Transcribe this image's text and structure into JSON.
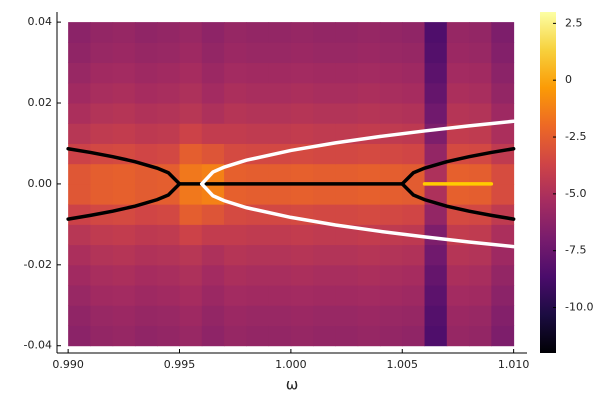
{
  "chart_data": {
    "type": "heatmap",
    "xlabel": "ω",
    "xlim": [
      0.9895,
      1.0106
    ],
    "ylim": [
      -0.0418,
      0.0425
    ],
    "xticks": [
      {
        "value": 0.99,
        "label": "0.990"
      },
      {
        "value": 0.995,
        "label": "0.995"
      },
      {
        "value": 1.0,
        "label": "1.000"
      },
      {
        "value": 1.005,
        "label": "1.005"
      },
      {
        "value": 1.01,
        "label": "1.010"
      }
    ],
    "yticks": [
      -0.04,
      -0.02,
      {
        "value": 0,
        "label": "0.00"
      },
      0.02,
      0.04
    ],
    "x_edges": [
      0.99,
      0.991,
      0.992,
      0.993,
      0.994,
      0.995,
      0.996,
      0.997,
      0.998,
      0.999,
      1.0,
      1.001,
      1.002,
      1.003,
      1.004,
      1.005,
      1.006,
      1.007,
      1.008,
      1.009,
      1.01
    ],
    "y_edges": [
      -0.04,
      -0.035,
      -0.03,
      -0.025,
      -0.02,
      -0.015,
      -0.01,
      -0.005,
      0,
      0.005,
      0.01,
      0.015,
      0.02,
      0.025,
      0.03,
      0.035,
      0.04
    ],
    "x_cells_note_free": true,
    "z": [
      [
        -6.3,
        -6,
        -5.9,
        -6.1,
        -6,
        -5.8,
        -6.2,
        -5.9,
        -6,
        -6,
        -5.9,
        -6,
        -6,
        -5.9,
        -6,
        -6.1,
        -8.5,
        -5.9,
        -6,
        -6.8
      ],
      [
        -6.1,
        -5.8,
        -5.7,
        -5.9,
        -5.8,
        -5.6,
        -6,
        -5.7,
        -5.8,
        -5.8,
        -5.7,
        -5.8,
        -5.8,
        -5.7,
        -5.8,
        -5.9,
        -8.3,
        -5.7,
        -5.8,
        -6.6
      ],
      [
        -5.8,
        -5.5,
        -5.4,
        -5.6,
        -5.5,
        -5.3,
        -5.7,
        -5.4,
        -5.5,
        -5.5,
        -5.4,
        -5.5,
        -5.5,
        -5.4,
        -5.5,
        -5.6,
        -8,
        -5.4,
        -5.5,
        -6.3
      ],
      [
        -5.5,
        -5.2,
        -5.1,
        -5.3,
        -5.2,
        -5,
        -5.4,
        -5.1,
        -5.2,
        -5.2,
        -5.1,
        -5.2,
        -5.2,
        -5.1,
        -5.2,
        -5.3,
        -7.7,
        -5.1,
        -5.2,
        -6
      ],
      [
        -5.1,
        -4.8,
        -4.7,
        -4.9,
        -4.8,
        -4.6,
        -5,
        -4.7,
        -4.8,
        -4.8,
        -4.7,
        -4.8,
        -4.8,
        -4.7,
        -4.8,
        -4.9,
        -7.3,
        -4.7,
        -4.8,
        -5.6
      ],
      [
        -4.6,
        -4.3,
        -4.2,
        -4.4,
        -4.3,
        -3.8,
        -4.2,
        -4.2,
        -4.3,
        -4.3,
        -4.2,
        -4.3,
        -4.3,
        -4.2,
        -4.3,
        -4.4,
        -6.8,
        -4.2,
        -4.3,
        -5.1
      ],
      [
        -3.8,
        -3.5,
        -3.4,
        -3.6,
        -3.5,
        -2.5,
        -2.9,
        -3.4,
        -3.5,
        -3.5,
        -3.4,
        -3.5,
        -3.5,
        -3.4,
        -3.5,
        -3.6,
        -6,
        -3.4,
        -3.5,
        -4.3
      ],
      [
        -2.8,
        -2.5,
        -2.4,
        -2.6,
        -2.5,
        -1.5,
        -1.2,
        -2.4,
        -2.5,
        -2.5,
        -2.4,
        -2.5,
        -2.5,
        -2.4,
        -2.5,
        -2.6,
        -5,
        -2.4,
        -2.5,
        -3.3
      ],
      [
        -2.8,
        -2.5,
        -2.4,
        -2.6,
        -2.5,
        -1.5,
        -1.2,
        -2.4,
        -2.5,
        -2.5,
        -2.4,
        -2.5,
        -2.5,
        -2.4,
        -2.5,
        -2.6,
        -5,
        -2.4,
        -2.5,
        -3.3
      ],
      [
        -3.8,
        -3.5,
        -3.4,
        -3.6,
        -3.5,
        -2.5,
        -2.9,
        -3.4,
        -3.5,
        -3.5,
        -3.4,
        -3.5,
        -3.5,
        -3.4,
        -3.5,
        -3.6,
        -6,
        -3.4,
        -3.5,
        -4.3
      ],
      [
        -4.6,
        -4.3,
        -4.2,
        -4.4,
        -4.3,
        -3.8,
        -4.2,
        -4.2,
        -4.3,
        -4.3,
        -4.2,
        -4.3,
        -4.3,
        -4.2,
        -4.3,
        -4.4,
        -6.8,
        -4.2,
        -4.3,
        -5.1
      ],
      [
        -5.1,
        -4.8,
        -4.7,
        -4.9,
        -4.8,
        -4.6,
        -5,
        -4.7,
        -4.8,
        -4.8,
        -4.7,
        -4.8,
        -4.8,
        -4.7,
        -4.8,
        -4.9,
        -7.3,
        -4.7,
        -4.8,
        -5.6
      ],
      [
        -5.5,
        -5.2,
        -5.1,
        -5.3,
        -5.2,
        -5,
        -5.4,
        -5.1,
        -5.2,
        -5.2,
        -5.1,
        -5.2,
        -5.2,
        -5.1,
        -5.2,
        -5.3,
        -7.7,
        -5.1,
        -5.2,
        -6
      ],
      [
        -5.8,
        -5.5,
        -5.4,
        -5.6,
        -5.5,
        -5.3,
        -5.7,
        -5.4,
        -5.5,
        -5.5,
        -5.4,
        -5.5,
        -5.5,
        -5.4,
        -5.5,
        -5.6,
        -8,
        -5.4,
        -5.5,
        -6.3
      ],
      [
        -6.1,
        -5.8,
        -5.7,
        -5.9,
        -5.8,
        -5.6,
        -6,
        -5.7,
        -5.8,
        -5.8,
        -5.7,
        -5.8,
        -5.8,
        -5.7,
        -5.8,
        -5.9,
        -8.3,
        -5.7,
        -5.8,
        -6.6
      ],
      [
        -6.3,
        -6,
        -5.9,
        -6.1,
        -6,
        -5.8,
        -6.2,
        -5.9,
        -6,
        -6,
        -5.9,
        -6,
        -6,
        -5.9,
        -6,
        -6.1,
        -8.5,
        -5.9,
        -6,
        -6.8
      ]
    ],
    "clim": [
      -12,
      3
    ],
    "colormap": [
      "#000004",
      "#1b0c41",
      "#4a0c6b",
      "#781c6d",
      "#a52c60",
      "#cf4446",
      "#ed6925",
      "#fb9b06",
      "#f7d13d",
      "#fcffa4"
    ],
    "cticks": [
      {
        "value": -10,
        "label": "-10.0"
      },
      -7.5,
      {
        "value": -5,
        "label": "-5.0"
      },
      -2.5,
      0,
      2.5
    ],
    "series": [
      {
        "color": "#000000",
        "x": [
          0.99,
          0.991,
          0.992,
          0.993,
          0.994,
          0.9945,
          0.995
        ],
        "values": [
          0.0087,
          0.00778,
          0.00674,
          0.0055,
          0.00389,
          0.00275,
          0
        ]
      },
      {
        "color": "#000000",
        "x": [
          0.99,
          0.991,
          0.992,
          0.993,
          0.994,
          0.9945,
          0.995
        ],
        "values": [
          -0.0087,
          -0.00778,
          -0.00674,
          -0.0055,
          -0.00389,
          -0.00275,
          0
        ]
      },
      {
        "color": "#000000",
        "x": [
          0.995,
          1.005
        ],
        "values": [
          0,
          0
        ]
      },
      {
        "color": "#000000",
        "x": [
          1.005,
          1.0055,
          1.006,
          1.007,
          1.008,
          1.009,
          1.01
        ],
        "values": [
          0,
          0.00275,
          0.00389,
          0.0055,
          0.00674,
          0.00778,
          0.0087
        ]
      },
      {
        "color": "#000000",
        "x": [
          1.005,
          1.0055,
          1.006,
          1.007,
          1.008,
          1.009,
          1.01
        ],
        "values": [
          0,
          -0.00275,
          -0.00389,
          -0.0055,
          -0.00674,
          -0.00778,
          -0.0087
        ]
      },
      {
        "color": "#ffffff",
        "x": [
          0.996,
          0.9965,
          0.997,
          0.998,
          1.0,
          1.002,
          1.004,
          1.006,
          1.008,
          1.01
        ],
        "values": [
          0,
          0.00293,
          0.00414,
          0.00586,
          0.00828,
          0.01015,
          0.01172,
          0.0131,
          0.01435,
          0.0155
        ]
      },
      {
        "color": "#ffffff",
        "x": [
          0.996,
          0.9965,
          0.997,
          0.998,
          1.0,
          1.002,
          1.004,
          1.006,
          1.008,
          1.01
        ],
        "values": [
          0,
          -0.00293,
          -0.00414,
          -0.00586,
          -0.00828,
          -0.01015,
          -0.01172,
          -0.0131,
          -0.01435,
          -0.0155
        ]
      },
      {
        "color": "#ffcc00",
        "x": [
          1.006,
          1.009
        ],
        "values": [
          0,
          0
        ]
      }
    ]
  }
}
